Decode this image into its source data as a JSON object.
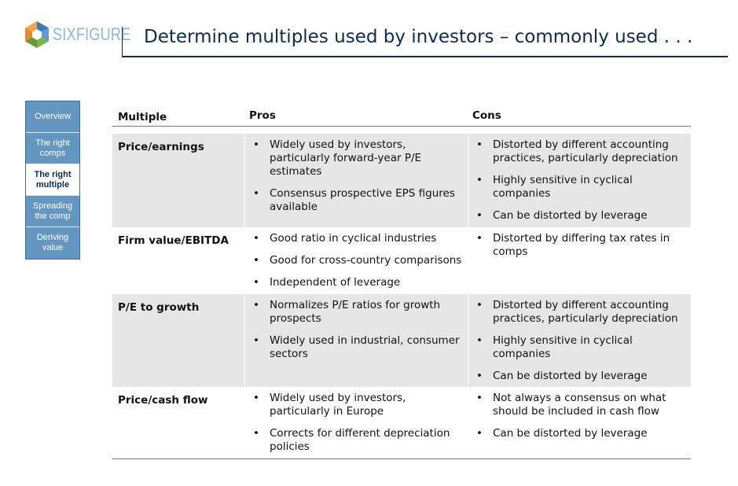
{
  "logo": {
    "text": "SIXFIGURE"
  },
  "title": "Determine multiples used by investors – commonly used . . .",
  "sidebar": {
    "items": [
      {
        "label": "Overview",
        "active": false
      },
      {
        "label": "The right comps",
        "active": false
      },
      {
        "label": "The right multiple",
        "active": true
      },
      {
        "label": "Spreading the comp",
        "active": false
      },
      {
        "label": "Deriving value",
        "active": false
      }
    ]
  },
  "table": {
    "headers": {
      "multiple": "Multiple",
      "pros": "Pros",
      "cons": "Cons"
    },
    "rows": [
      {
        "multiple": "Price/earnings",
        "pros": [
          "Widely used by investors, particularly forward-year P/E estimates",
          "Consensus prospective EPS figures available"
        ],
        "cons": [
          "Distorted by different accounting practices, particularly depreciation",
          "Highly sensitive in cyclical companies",
          "Can be distorted by leverage"
        ]
      },
      {
        "multiple": "Firm value/EBITDA",
        "pros": [
          "Good ratio in cyclical industries",
          "Good for cross-country comparisons",
          "Independent of leverage"
        ],
        "cons": [
          "Distorted by differing tax rates in comps"
        ]
      },
      {
        "multiple": "P/E to growth",
        "pros": [
          "Normalizes P/E ratios for growth prospects",
          "Widely used in industrial, consumer sectors"
        ],
        "cons": [
          "Distorted by different accounting practices, particularly depreciation",
          "Highly sensitive in cyclical companies",
          "Can be distorted by leverage"
        ]
      },
      {
        "multiple": "Price/cash flow",
        "pros": [
          "Widely used by investors, particularly in Europe",
          "Corrects for different depreciation policies"
        ],
        "cons": [
          "Not always a consensus on what should be included in cash flow",
          "Can be distorted by leverage"
        ]
      }
    ]
  },
  "colors": {
    "title": "#0e2a4e",
    "nav_bg": "#6496c2",
    "nav_active_bg": "#ffffff",
    "row_shade": "#e6e6e6",
    "logo_orange": "#e8882a",
    "logo_blue": "#3d78b8",
    "logo_green": "#7ab648"
  }
}
